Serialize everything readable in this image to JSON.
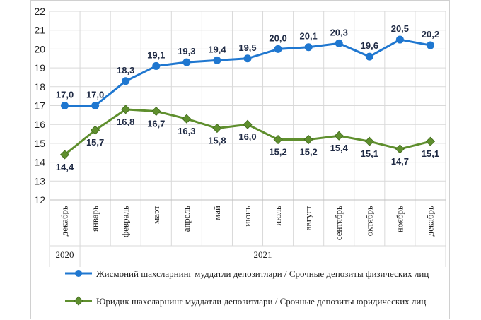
{
  "chart_data": {
    "type": "line",
    "categories": [
      "декабрь",
      "январь",
      "февраль",
      "март",
      "апрель",
      "май",
      "июнь",
      "июль",
      "август",
      "сентябрь",
      "октябрь",
      "ноябрь",
      "декабрь"
    ],
    "year_groups": [
      {
        "label": "2020",
        "from": 0,
        "to": 0
      },
      {
        "label": "2021",
        "from": 1,
        "to": 12
      }
    ],
    "series": [
      {
        "name": "Жисмоний шахсларнинг муддатли депозитлари / Срочные депозиты физических лиц",
        "color": "#1f77d0",
        "marker": "circle",
        "values": [
          17.0,
          17.0,
          18.3,
          19.1,
          19.3,
          19.4,
          19.5,
          20.0,
          20.1,
          20.3,
          19.6,
          20.5,
          20.2
        ],
        "labels": [
          "17,0",
          "17,0",
          "18,3",
          "19,1",
          "19,3",
          "19,4",
          "19,5",
          "20,0",
          "20,1",
          "20,3",
          "19,6",
          "20,5",
          "20,2"
        ]
      },
      {
        "name": "Юридик шахсларнинг муддатли депозитлари / Срочные депозиты юридических лиц",
        "color": "#5f8f2e",
        "marker": "diamond",
        "values": [
          14.4,
          15.7,
          16.8,
          16.7,
          16.3,
          15.8,
          16.0,
          15.2,
          15.2,
          15.4,
          15.1,
          14.7,
          15.1
        ],
        "labels": [
          "14,4",
          "15,7",
          "16,8",
          "16,7",
          "16,3",
          "15,8",
          "16,0",
          "15,2",
          "15,2",
          "15,4",
          "15,1",
          "14,7",
          "15,1"
        ]
      }
    ],
    "ylim": [
      12,
      22
    ],
    "yticks": [
      12,
      13,
      14,
      15,
      16,
      17,
      18,
      19,
      20,
      21,
      22
    ],
    "grid": true,
    "legend": "bottom",
    "title": "",
    "xlabel": "",
    "ylabel": ""
  }
}
